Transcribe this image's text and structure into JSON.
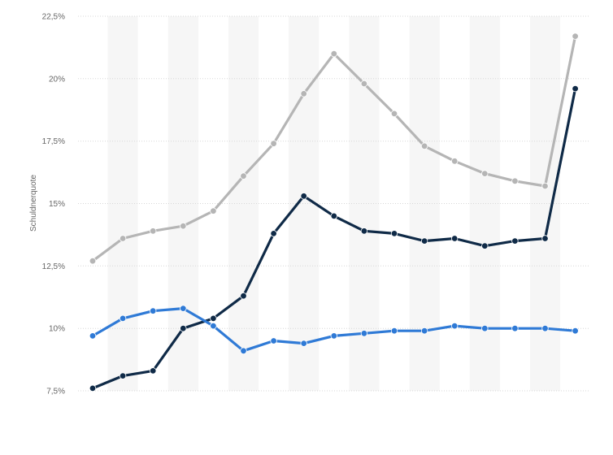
{
  "chart_data": {
    "type": "line",
    "ylabel": "Schuldnerquote",
    "yticks": [
      "7,5%",
      "10%",
      "12,5%",
      "15%",
      "17,5%",
      "20%",
      "22,5%"
    ],
    "ytick_values": [
      7.5,
      10,
      12.5,
      15,
      17.5,
      20,
      22.5
    ],
    "ylim": [
      7.5,
      22.5
    ],
    "point_count": 17,
    "grid": true,
    "series": [
      {
        "color": "#b5b5b5",
        "values": [
          12.7,
          13.6,
          13.9,
          14.1,
          14.7,
          16.1,
          17.4,
          19.4,
          21.0,
          19.8,
          18.6,
          17.3,
          16.7,
          16.2,
          15.9,
          15.7,
          21.7
        ]
      },
      {
        "color": "#0f2a47",
        "values": [
          7.6,
          8.1,
          8.3,
          10.0,
          10.4,
          11.3,
          13.8,
          15.3,
          14.5,
          13.9,
          13.8,
          13.5,
          13.6,
          13.3,
          13.5,
          13.6,
          19.6
        ]
      },
      {
        "color": "#2f7ad6",
        "values": [
          9.7,
          10.4,
          10.7,
          10.8,
          10.1,
          9.1,
          9.5,
          9.4,
          9.7,
          9.8,
          9.9,
          9.9,
          10.1,
          10.0,
          10.0,
          10.0,
          9.9
        ]
      }
    ]
  }
}
